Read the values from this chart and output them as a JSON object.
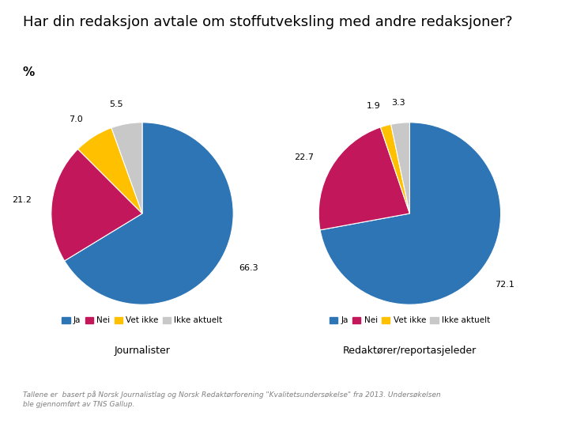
{
  "title": "Har din redaksjon avtale om stoffutveksling med andre redaksjoner?",
  "percent_label": "%",
  "pie1": {
    "values": [
      66.3,
      21.2,
      7.0,
      5.5
    ],
    "labels": [
      "66.3",
      "21.2",
      "7.0",
      "5.5"
    ],
    "colors": [
      "#2E75B6",
      "#C2185B",
      "#FFC000",
      "#C8C8C8"
    ],
    "subtitle": "Journalister"
  },
  "pie2": {
    "values": [
      72.1,
      22.7,
      1.9,
      3.3
    ],
    "labels": [
      "72.1",
      "22.7",
      "1.9",
      "3.3"
    ],
    "colors": [
      "#2E75B6",
      "#C2185B",
      "#FFC000",
      "#C8C8C8"
    ],
    "subtitle": "Redaktører/reportasjeleder"
  },
  "legend_labels": [
    "Ja",
    "Nei",
    "Vet ikke",
    "Ikke aktuelt"
  ],
  "legend_colors": [
    "#2E75B6",
    "#C2185B",
    "#FFC000",
    "#C8C8C8"
  ],
  "footnote_line1": "Tallene er  basert på Norsk Journalistlag og Norsk Redaktørforening \"Kvalitetsundersøkelse\" fra 2013. Undersøkelsen",
  "footnote_line2": "ble gjennomført av TNS Gallup.",
  "background_color": "#FFFFFF",
  "title_fontsize": 13,
  "label_fontsize": 8,
  "subtitle_fontsize": 9,
  "legend_fontsize": 7.5,
  "footnote_fontsize": 6.5
}
